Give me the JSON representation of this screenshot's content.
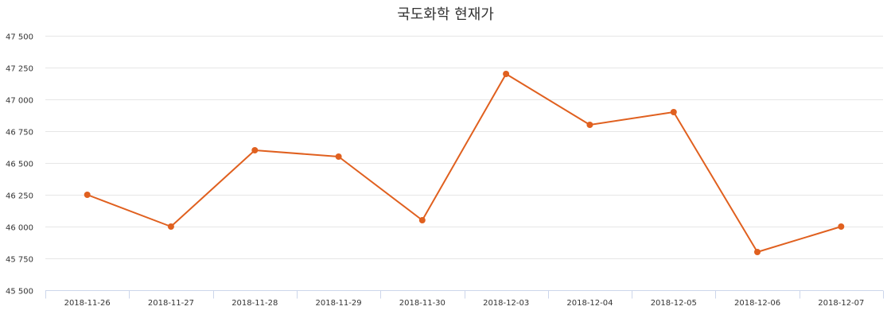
{
  "chart_data": {
    "type": "line",
    "title": "국도화학 현재가",
    "xlabel": "",
    "ylabel": "",
    "categories": [
      "2018-11-26",
      "2018-11-27",
      "2018-11-28",
      "2018-11-29",
      "2018-11-30",
      "2018-12-03",
      "2018-12-04",
      "2018-12-05",
      "2018-12-06",
      "2018-12-07"
    ],
    "series": [
      {
        "name": "현재가",
        "color": "#E0601F",
        "values": [
          46250,
          46000,
          46600,
          46550,
          46050,
          47200,
          46800,
          46900,
          45800,
          46000
        ]
      }
    ],
    "ylim": [
      45500,
      47500
    ],
    "yticks": [
      45500,
      45750,
      46000,
      46250,
      46500,
      46750,
      47000,
      47250,
      47500
    ],
    "ytick_labels": [
      "45 500",
      "45 750",
      "46 000",
      "46 250",
      "46 500",
      "46 750",
      "47 000",
      "47 250",
      "47 500"
    ],
    "grid": true,
    "legend": false
  }
}
